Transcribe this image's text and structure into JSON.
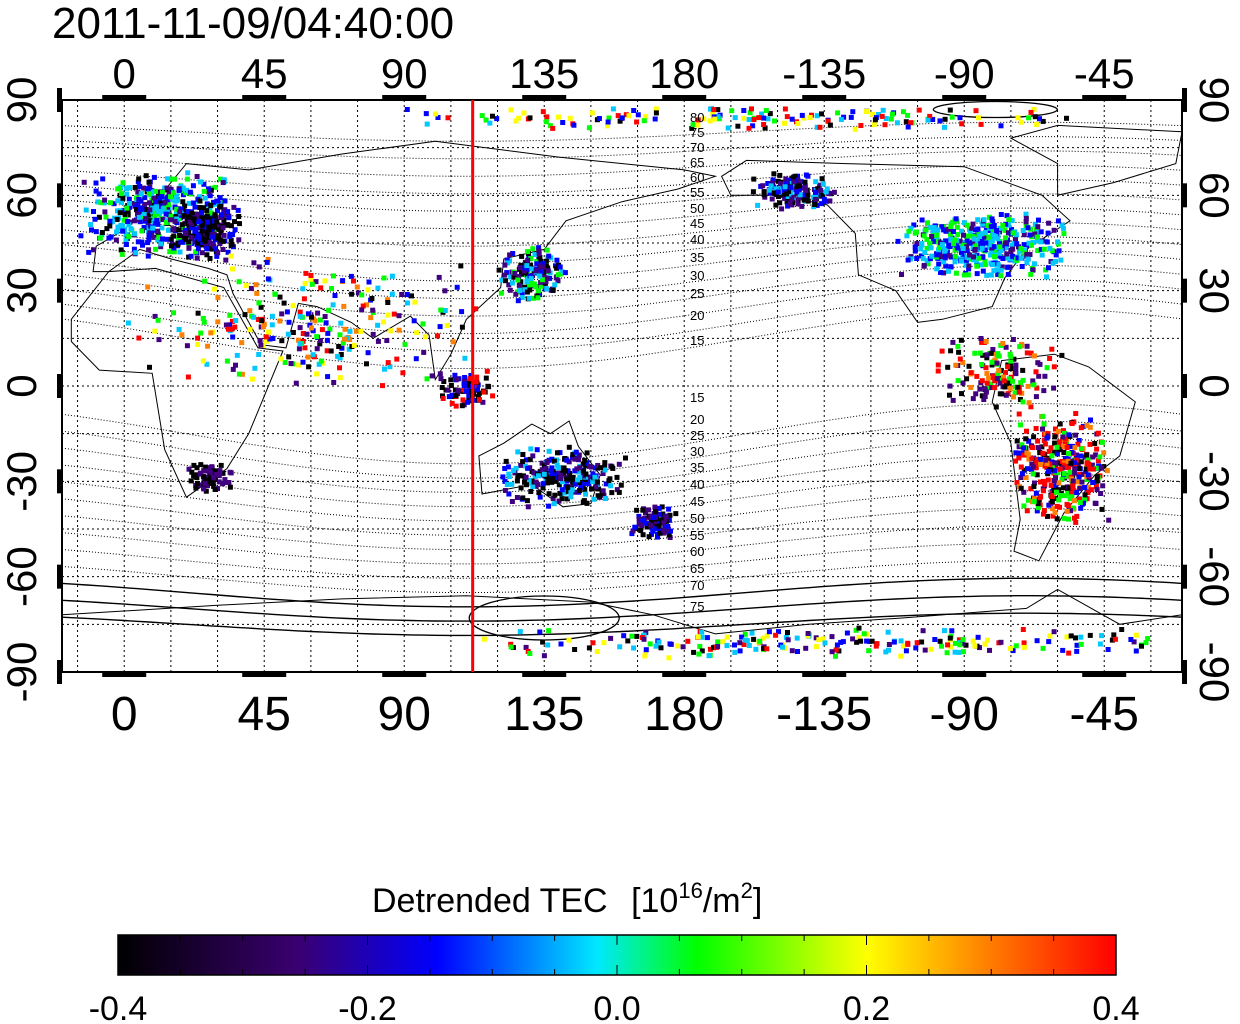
{
  "timestamp": "2011-11-09/04:40:00",
  "map": {
    "lon_ticks_top": [
      "0",
      "45",
      "90",
      "135",
      "180",
      "-135",
      "-90",
      "-45"
    ],
    "lon_ticks_bottom": [
      "0",
      "45",
      "90",
      "135",
      "180",
      "-135",
      "-90",
      "-45"
    ],
    "lat_ticks_left": [
      "90",
      "60",
      "30",
      "0",
      "-30",
      "-60",
      "-90"
    ],
    "lat_ticks_right": [
      "90",
      "60",
      "30",
      "0",
      "-30",
      "-60",
      "-90"
    ],
    "lon_tick_values": [
      0,
      45,
      90,
      135,
      180,
      225,
      270,
      315
    ],
    "lat_tick_values": [
      90,
      60,
      30,
      0,
      -30,
      -60,
      -90
    ],
    "lon_range": [
      -20,
      340
    ],
    "lat_range": [
      -90,
      90
    ],
    "marker_lon": 112,
    "marker_color": "#ff0000",
    "contour_labels_north": [
      "80",
      "75",
      "70",
      "65",
      "60",
      "55",
      "50",
      "45",
      "40",
      "35",
      "30",
      "25",
      "20",
      "15"
    ],
    "contour_labels_south": [
      "15",
      "20",
      "25",
      "30",
      "35",
      "40",
      "45",
      "50",
      "55",
      "60",
      "65",
      "70",
      "75"
    ]
  },
  "colorbar": {
    "title": "Detrended TEC",
    "unit_base": "[10",
    "unit_exp": "16",
    "unit_mid": "/m",
    "unit_exp2": "2",
    "unit_end": "]",
    "tick_labels": [
      "-0.4",
      "-0.2",
      "0.0",
      "0.2",
      "0.4"
    ],
    "range": [
      -0.4,
      0.4
    ],
    "colors": [
      "#000000",
      "#400080",
      "#0000ff",
      "#00c8ff",
      "#00ff00",
      "#ffff00",
      "#ff8000",
      "#ff0000"
    ]
  }
}
